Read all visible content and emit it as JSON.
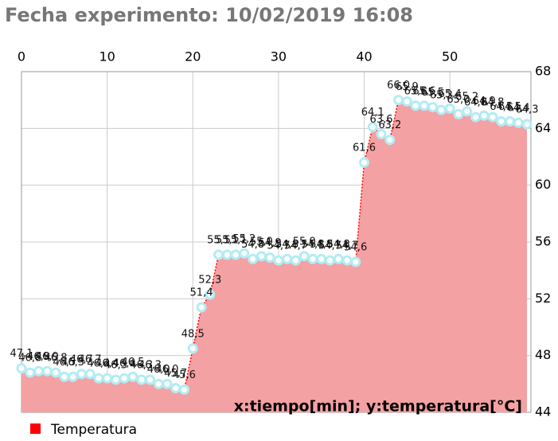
{
  "chart_data": {
    "type": "area",
    "title": "Fecha experimento: 10/02/2019 16:08",
    "annotation": "x:tiempo[min]; y:temperatura[°C]",
    "x": [
      0,
      1,
      2,
      3,
      4,
      5,
      6,
      7,
      8,
      9,
      10,
      11,
      12,
      13,
      14,
      15,
      16,
      17,
      18,
      19,
      20,
      21,
      22,
      23,
      24,
      25,
      26,
      27,
      28,
      29,
      30,
      31,
      32,
      33,
      34,
      35,
      36,
      37,
      38,
      39,
      40,
      41,
      42,
      43,
      44,
      45,
      46,
      47,
      48,
      49,
      50,
      51,
      52,
      53,
      54,
      55,
      56,
      57,
      58,
      59
    ],
    "series": [
      {
        "name": "Temperatura",
        "color": "#ff0000",
        "fill_color": "#f4a1a3",
        "marker_color": "#b3ecf5",
        "values": [
          47.1,
          46.8,
          46.9,
          46.9,
          46.8,
          46.5,
          46.5,
          46.7,
          46.7,
          46.4,
          46.4,
          46.3,
          46.4,
          46.5,
          46.3,
          46.3,
          46.0,
          46.0,
          45.7,
          45.6,
          48.5,
          51.4,
          52.3,
          55.1,
          55.1,
          55.1,
          55.2,
          54.8,
          55.0,
          54.9,
          54.7,
          54.8,
          54.7,
          55.0,
          54.8,
          54.8,
          54.7,
          54.8,
          54.7,
          54.6,
          61.6,
          64.1,
          63.6,
          63.2,
          66.0,
          65.9,
          65.6,
          65.6,
          65.5,
          65.3,
          65.4,
          65.0,
          65.2,
          64.8,
          64.9,
          64.8,
          64.5,
          64.5,
          64.4,
          64.3
        ],
        "value_labels": [
          "47,1",
          "46,8",
          "46,9",
          "46,9",
          "46,8",
          "46,5",
          "46,5",
          "46,7",
          "46,7",
          "46,4",
          "46,4",
          "46,3",
          "46,4",
          "46,5",
          "46,3",
          "46,3",
          "46,0",
          "46,0",
          "45,7",
          "45,6",
          "48,5",
          "51,4",
          "52,3",
          "55,1",
          "55,1",
          "55,1",
          "55,2",
          "54,8",
          "55,0",
          "54,9",
          "54,7",
          "54,8",
          "54,7",
          "55,0",
          "54,8",
          "54,8",
          "54,7",
          "54,8",
          "54,7",
          "54,6",
          "61,6",
          "64,1",
          "63,6",
          "63,2",
          "66,0",
          "65,9",
          "65,6",
          "65,6",
          "65,5",
          "65,3",
          "65,4",
          "65,0",
          "65,2",
          "64,8",
          "64,9",
          "64,8",
          "64,5",
          "64,5",
          "64,4",
          "64,3"
        ]
      }
    ],
    "xlim": [
      0,
      59
    ],
    "xticks": [
      0,
      10,
      20,
      30,
      40,
      50
    ],
    "ylim": [
      44,
      68
    ],
    "yticks": [
      44,
      48,
      52,
      56,
      60,
      64,
      68
    ],
    "grid": true
  }
}
